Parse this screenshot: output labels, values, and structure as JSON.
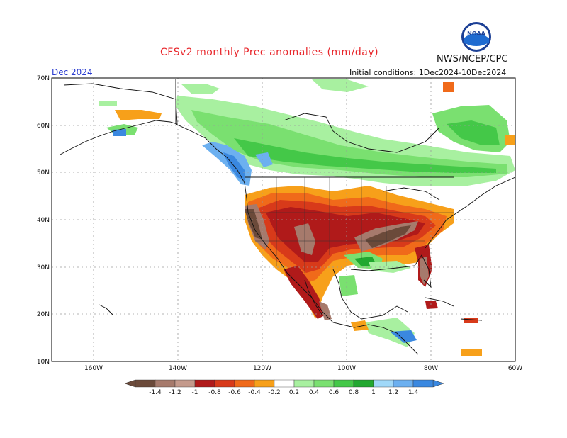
{
  "title": "CFSv2 monthly Prec anomalies (mm/day)",
  "agency": "NWS/NCEP/CPC",
  "logo_text": "NOAA",
  "valid_month": "Dec 2024",
  "initial_conditions": "Initial conditions: 1Dec2024-10Dec2024",
  "lat_labels": [
    "70N",
    "60N",
    "50N",
    "40N",
    "30N",
    "20N",
    "10N"
  ],
  "lon_labels": [
    "160W",
    "140W",
    "120W",
    "100W",
    "80W",
    "60W"
  ],
  "legend": {
    "ticks": [
      "-1.4",
      "-1.2",
      "-1",
      "-0.8",
      "-0.6",
      "-0.4",
      "-0.2",
      "0.2",
      "0.4",
      "0.6",
      "0.8",
      "1",
      "1.2",
      "1.4"
    ],
    "colors": [
      "#6b4a3a",
      "#a67a6c",
      "#c49a8c",
      "#b01a1a",
      "#d83a1a",
      "#f06a1a",
      "#f7a01a",
      "#ffffff",
      "#a8f0a0",
      "#7ae070",
      "#44c848",
      "#22a830",
      "#a0d8f8",
      "#6cb0f0",
      "#3a88e0"
    ]
  },
  "colors": {
    "dry_dark": "#6b4a3a",
    "dry_brown": "#a67a6c",
    "dry_red": "#b01a1a",
    "dry_orange_red": "#d83a1a",
    "dry_orange": "#f06a1a",
    "dry_light_orange": "#f7a01a",
    "wet_light": "#a8f0a0",
    "wet_mid": "#7ae070",
    "wet": "#44c848",
    "wet_dark": "#22a830",
    "wet_blue": "#6cb0f0",
    "wet_deep_blue": "#3a88e0"
  }
}
